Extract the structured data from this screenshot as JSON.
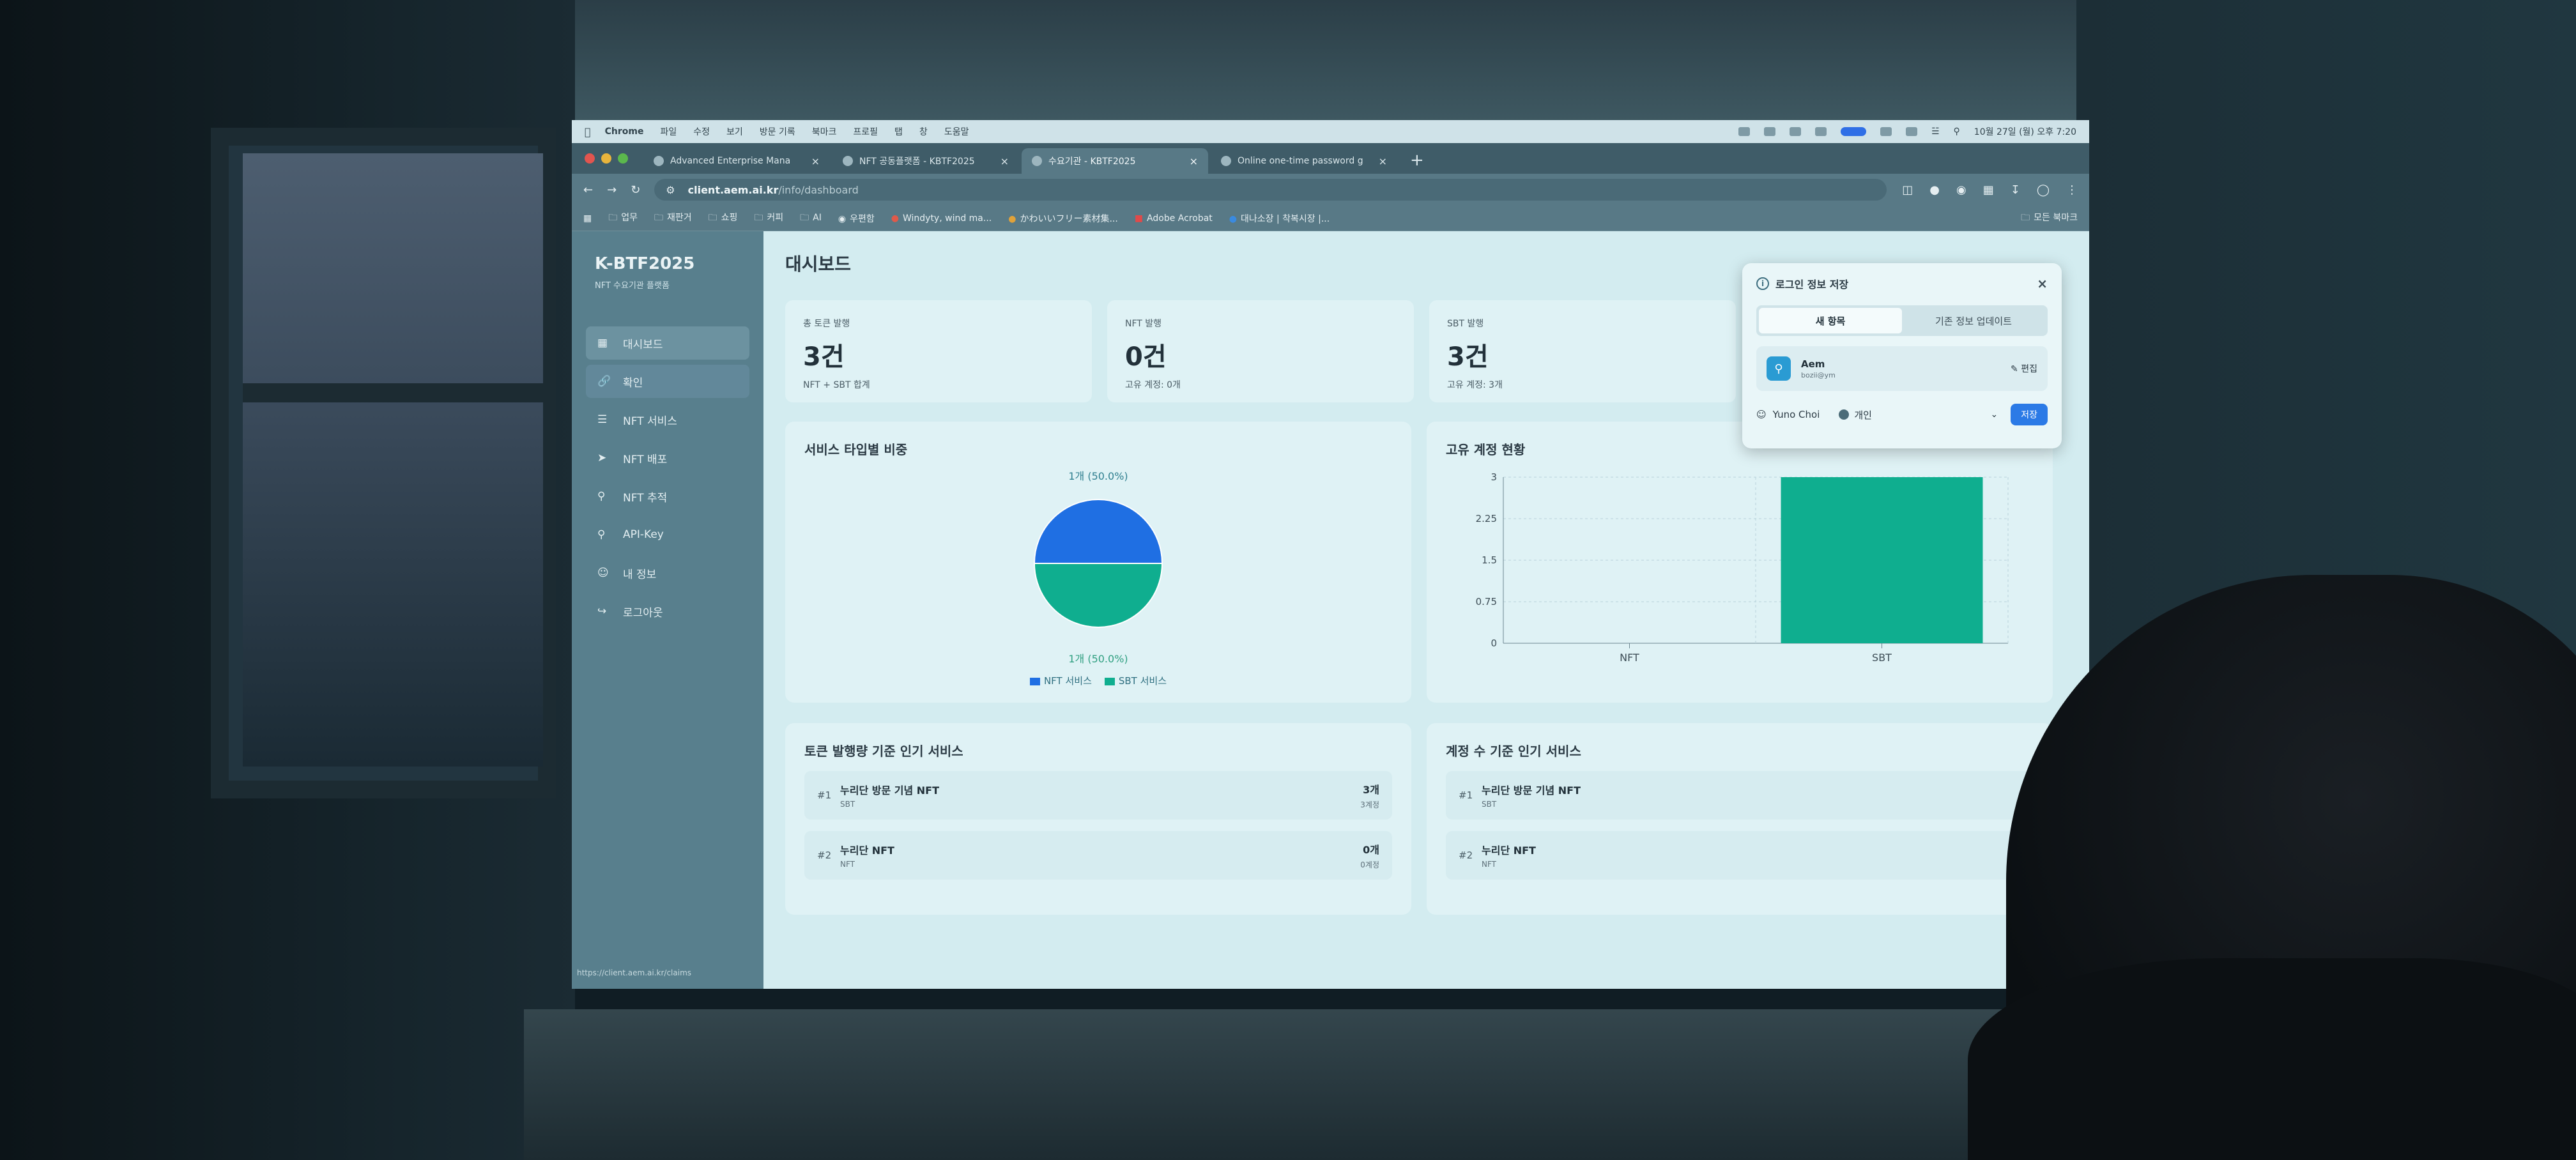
{
  "menubar": {
    "app_name": "Chrome",
    "items": [
      "파일",
      "수정",
      "보기",
      "방문 기록",
      "북마크",
      "프로필",
      "탭",
      "창",
      "도움말"
    ],
    "clock": "10월 27일 (월) 오후 7:20"
  },
  "tabs": [
    {
      "title": "Advanced Enterprise Mana",
      "active": false
    },
    {
      "title": "NFT 공동플랫폼 - KBTF2025",
      "active": false
    },
    {
      "title": "수요기관 - KBTF2025",
      "active": true
    },
    {
      "title": "Online one-time password g",
      "active": false
    }
  ],
  "address": {
    "url_host": "client.aem.ai.kr",
    "url_path": "/info/dashboard"
  },
  "bookmarks": [
    {
      "icon": "folder-icon",
      "label": "업무"
    },
    {
      "icon": "folder-icon",
      "label": "재판거"
    },
    {
      "icon": "folder-icon",
      "label": "쇼핑"
    },
    {
      "icon": "folder-icon",
      "label": "커피"
    },
    {
      "icon": "folder-icon",
      "label": "AI"
    },
    {
      "icon": "globe-icon",
      "label": "우편함"
    },
    {
      "icon": "globe-icon",
      "label": "Windyty, wind ma..."
    },
    {
      "icon": "globe-icon",
      "label": "かわいいフリー素材集..."
    },
    {
      "icon": "acrobat-icon",
      "label": "Adobe Acrobat"
    },
    {
      "icon": "globe-icon",
      "label": "대나소장 | 착복시장 |..."
    }
  ],
  "bookmarks_right": "모든 북마크",
  "sidebar": {
    "brand": "K-BTF2025",
    "subtitle": "NFT 수요기관 플랫폼",
    "items": [
      {
        "icon": "dashboard-icon",
        "label": "대시보드",
        "active": true
      },
      {
        "icon": "link-icon",
        "label": "확인",
        "active": false
      },
      {
        "icon": "layers-icon",
        "label": "NFT 서비스",
        "active": false
      },
      {
        "icon": "rocket-icon",
        "label": "NFT 배포",
        "active": false
      },
      {
        "icon": "search-icon",
        "label": "NFT 추적",
        "active": false
      },
      {
        "icon": "key-icon",
        "label": "API-Key",
        "active": false
      },
      {
        "icon": "user-icon",
        "label": "내 정보",
        "active": false
      },
      {
        "icon": "logout-icon",
        "label": "로그아웃",
        "active": false
      }
    ],
    "status_url": "https://client.aem.ai.kr/claims"
  },
  "page_title": "대시보드",
  "stats": [
    {
      "label": "총 토큰 발행",
      "value": "3건",
      "sub": "NFT + SBT 합계"
    },
    {
      "label": "NFT 발행",
      "value": "0건",
      "sub": "고유 계정: 0개"
    },
    {
      "label": "SBT 발행",
      "value": "3건",
      "sub": "고유 계정: 3개"
    }
  ],
  "pie_panel": {
    "title": "서비스 타입별 비중",
    "top_label": "1개 (50.0%)",
    "bottom_label": "1개 (50.0%)"
  },
  "bar_panel": {
    "title": "고유 계정 현황"
  },
  "colors": {
    "nft": "#1f6fe3",
    "sbt": "#0fae8f"
  },
  "chart_data": [
    {
      "type": "pie",
      "categories": [
        "NFT 서비스",
        "SBT 서비스"
      ],
      "values": [
        1,
        1
      ],
      "percent_labels": [
        "1개 (50.0%)",
        "1개 (50.0%)"
      ],
      "legend": [
        "NFT 서비스",
        "SBT 서비스"
      ]
    },
    {
      "type": "bar",
      "categories": [
        "NFT",
        "SBT"
      ],
      "values": [
        0,
        3
      ],
      "ylim": [
        0,
        3
      ],
      "yticks": [
        "0",
        "0.75",
        "1.5",
        "2.25",
        "3"
      ],
      "grid": true
    }
  ],
  "rank_by_tokens": {
    "title": "토큰 발행량 기준 인기 서비스",
    "items": [
      {
        "rank": "#1",
        "name": "누리단 방문 기념 NFT",
        "type": "SBT",
        "count": "3개",
        "accounts": "3계정"
      },
      {
        "rank": "#2",
        "name": "누리단 NFT",
        "type": "NFT",
        "count": "0개",
        "accounts": "0계정"
      }
    ]
  },
  "rank_by_accounts": {
    "title": "계정 수 기준 인기 서비스",
    "items": [
      {
        "rank": "#1",
        "name": "누리단 방문 기념 NFT",
        "type": "SBT"
      },
      {
        "rank": "#2",
        "name": "누리단 NFT",
        "type": "NFT"
      }
    ]
  },
  "password_popup": {
    "title": "로그인 정보 저장",
    "tab_new": "새 항목",
    "tab_update": "기존 정보 업데이트",
    "account_name": "Aem",
    "account_user": "bozii@ym",
    "edit_label": "편집",
    "profile_name": "Yuno Choi",
    "vault_name": "개인",
    "save_label": "저장"
  }
}
